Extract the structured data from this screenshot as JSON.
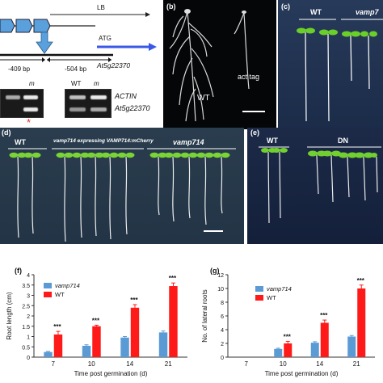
{
  "panel_a": {
    "lb": "LB",
    "atg": "ATG",
    "dist1": "-409 bp",
    "dist2": "-504 bp",
    "gene": "At5g22370",
    "gel_m1": "m",
    "gel_wt": "WT",
    "gel_m2": "m",
    "actin": "ACTIN",
    "gene2": "At5g22370",
    "asterisk": "*"
  },
  "panel_b": {
    "letter": "(b)",
    "wt": "WT",
    "act": "act tag"
  },
  "panel_c": {
    "letter": "(c)",
    "wt": "WT",
    "mut": "vamp7"
  },
  "panel_d": {
    "letter": "(d)",
    "wt": "WT",
    "middle": "vamp714 expressing VAMP714:mCherry",
    "right": "vamp714"
  },
  "panel_e": {
    "letter": "(e)",
    "wt": "WT",
    "dn": "DN"
  },
  "chart_data": [
    {
      "panel": "(f)",
      "type": "bar",
      "categories": [
        "7",
        "10",
        "14",
        "21"
      ],
      "series": [
        {
          "name": "vamp714",
          "values": [
            0.25,
            0.55,
            0.95,
            1.2
          ],
          "errors": [
            0.03,
            0.05,
            0.05,
            0.07
          ],
          "color": "#5b9bd5"
        },
        {
          "name": "WT",
          "values": [
            1.1,
            1.5,
            2.4,
            3.45
          ],
          "errors": [
            0.15,
            0.05,
            0.15,
            0.15
          ],
          "color": "#ff1a1a"
        }
      ],
      "significance": [
        "***",
        "***",
        "***",
        "***"
      ],
      "xlabel": "Time post germination (d)",
      "ylabel": "Root length (cm)",
      "ylim": [
        0,
        4
      ],
      "yticks": [
        "0",
        "0.5",
        "1",
        "1.5",
        "2",
        "2.5",
        "3",
        "3.5",
        "4"
      ]
    },
    {
      "panel": "(g)",
      "type": "bar",
      "categories": [
        "7",
        "10",
        "14",
        "21"
      ],
      "series": [
        {
          "name": "vamp714",
          "values": [
            0,
            1.2,
            2.1,
            3.0
          ],
          "errors": [
            0,
            0.1,
            0.15,
            0.15
          ],
          "color": "#5b9bd5"
        },
        {
          "name": "WT",
          "values": [
            0,
            2.0,
            5.0,
            10.0
          ],
          "errors": [
            0,
            0.3,
            0.4,
            0.5
          ],
          "color": "#ff1a1a"
        }
      ],
      "significance": [
        "",
        "***",
        "***",
        "***"
      ],
      "xlabel": "Time post germination (d)",
      "ylabel": "No. of lateral roots",
      "ylim": [
        0,
        12
      ],
      "yticks": [
        "0",
        "2",
        "4",
        "6",
        "8",
        "10",
        "12"
      ]
    }
  ]
}
